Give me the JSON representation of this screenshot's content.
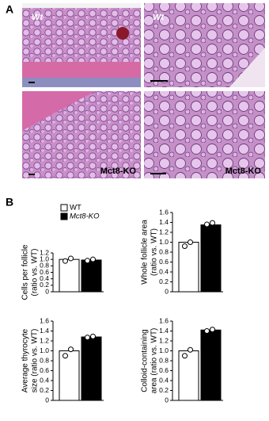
{
  "panels": {
    "a": "A",
    "b": "B"
  },
  "images": {
    "top_left": "Wt",
    "top_right": "Wt",
    "bottom_left": "Mct8-KO",
    "bottom_right": "Mct8-KO"
  },
  "chart_data": [
    {
      "type": "bar",
      "ylabel": [
        "Cells per follicle",
        "(ratio vs. WT)"
      ],
      "ylim": [
        0,
        1.2
      ],
      "yticks": [
        0,
        0.2,
        0.4,
        0.6,
        0.8,
        {
          "value": 1,
          "label": "1.0"
        },
        1.2
      ],
      "series": [
        {
          "name": "WT",
          "color": "#ffffff",
          "values": [
            1.0
          ],
          "points": [
            0.95,
            1.03
          ]
        },
        {
          "name": "Mct8-KO",
          "color": "#000000",
          "values": [
            0.98
          ],
          "points": [
            0.96,
            1.0
          ]
        }
      ]
    },
    {
      "type": "bar",
      "ylabel": [
        "Whole follicle area",
        "(ratio vs. WT)"
      ],
      "ylim": [
        0,
        1.6
      ],
      "yticks": [
        0,
        0.2,
        0.4,
        0.6,
        0.8,
        {
          "value": 1,
          "label": "1.0"
        },
        1.2,
        1.4,
        1.6
      ],
      "series": [
        {
          "color": "#ffffff",
          "values": [
            1.0
          ],
          "points": [
            0.92,
            1.0
          ]
        },
        {
          "color": "#000000",
          "values": [
            1.35
          ],
          "points": [
            1.36,
            1.39
          ]
        }
      ]
    },
    {
      "type": "bar",
      "ylabel": [
        "Average thyrocyte",
        "size (ratio vs. WT)"
      ],
      "ylim": [
        0,
        1.6
      ],
      "yticks": [
        0,
        0.2,
        0.4,
        0.6,
        0.8,
        {
          "value": 1,
          "label": "1.0"
        },
        1.2,
        1.4,
        1.6
      ],
      "series": [
        {
          "color": "#ffffff",
          "values": [
            1.0
          ],
          "points": [
            0.9,
            1.03
          ]
        },
        {
          "color": "#000000",
          "values": [
            1.28
          ],
          "points": [
            1.27,
            1.29
          ]
        }
      ]
    },
    {
      "type": "bar",
      "ylabel": [
        "Colloid-containing",
        "area (ratio vs. WT)"
      ],
      "ylim": [
        0,
        1.6
      ],
      "yticks": [
        0,
        0.2,
        0.4,
        0.6,
        0.8,
        {
          "value": 1,
          "label": "1.0"
        },
        1.2,
        1.4,
        1.6
      ],
      "series": [
        {
          "color": "#ffffff",
          "values": [
            1.0
          ],
          "points": [
            0.9,
            1.02
          ]
        },
        {
          "color": "#000000",
          "values": [
            1.42
          ],
          "points": [
            1.4,
            1.43
          ]
        }
      ]
    }
  ]
}
